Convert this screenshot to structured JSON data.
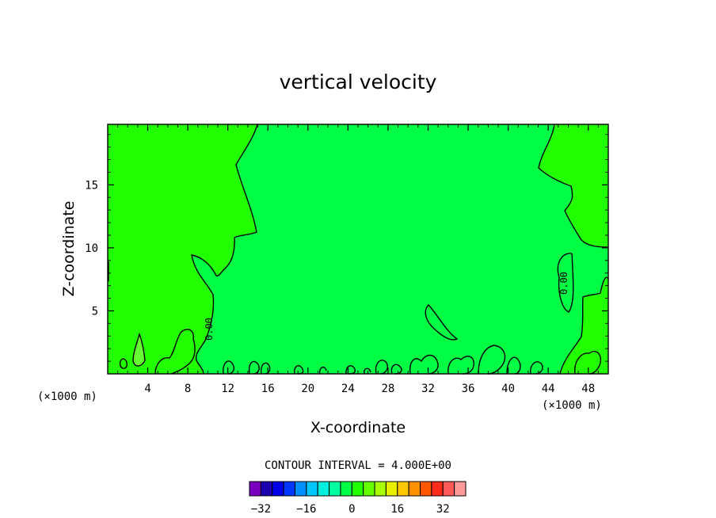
{
  "chart_data": {
    "type": "contour",
    "title": "vertical velocity",
    "xlabel": "X-coordinate",
    "ylabel": "Z-coordinate",
    "x_unit_label": "(×1000 m)",
    "x_ticks": [
      4,
      8,
      12,
      16,
      20,
      24,
      28,
      32,
      36,
      40,
      44,
      48
    ],
    "y_ticks": [
      5,
      10,
      15
    ],
    "xlim": [
      0,
      50
    ],
    "ylim": [
      0,
      19.8
    ],
    "contour_interval_text": "CONTOUR INTERVAL = 4.000E+00",
    "contour_labels": [
      "0.00",
      "0.00"
    ],
    "regions": [
      {
        "name": "positive",
        "color": "#22ff00"
      },
      {
        "name": "near-zero",
        "color": "#00ff44"
      },
      {
        "name": "small-positive-patch",
        "color": "#66ff33"
      }
    ],
    "colorbar": {
      "colors": [
        "#7a00c0",
        "#1b00b0",
        "#0000e8",
        "#0038ff",
        "#0090ff",
        "#00c8ff",
        "#00f0e0",
        "#00ffa0",
        "#00ff44",
        "#22ff00",
        "#66ff00",
        "#a8ff00",
        "#e8f000",
        "#ffc800",
        "#ff9000",
        "#ff5800",
        "#ff2a1a",
        "#ff5a5a",
        "#ff9a9a"
      ],
      "tick_labels": [
        {
          "value": -32,
          "label": "−32"
        },
        {
          "value": -16,
          "label": "−16"
        },
        {
          "value": 0,
          "label": "0"
        },
        {
          "value": 16,
          "label": "16"
        },
        {
          "value": 32,
          "label": "32"
        }
      ],
      "min": -36,
      "max": 40
    }
  }
}
